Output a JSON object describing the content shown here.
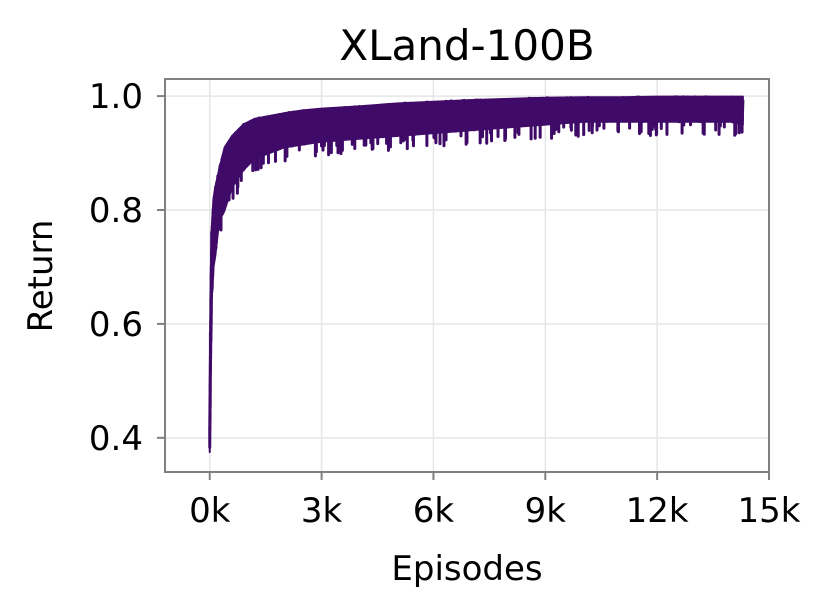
{
  "chart_data": {
    "type": "line",
    "title": "XLand-100B",
    "xlabel": "Episodes",
    "ylabel": "Return",
    "xlim": [
      -1200,
      15000
    ],
    "ylim": [
      0.34,
      1.03
    ],
    "xticks": [
      0,
      3000,
      6000,
      9000,
      12000,
      15000
    ],
    "xtick_labels": [
      "0k",
      "3k",
      "6k",
      "9k",
      "12k",
      "15k"
    ],
    "yticks": [
      0.4,
      0.6,
      0.8,
      1.0
    ],
    "ytick_labels": [
      "0.4",
      "0.6",
      "0.8",
      "1.0"
    ],
    "grid": true,
    "series": [
      {
        "color": "#3f0a68",
        "band_upper": [
          [
            0,
            0.42
          ],
          [
            20,
            0.6
          ],
          [
            50,
            0.76
          ],
          [
            100,
            0.82
          ],
          [
            150,
            0.84
          ],
          [
            250,
            0.87
          ],
          [
            400,
            0.91
          ],
          [
            600,
            0.93
          ],
          [
            900,
            0.95
          ],
          [
            1200,
            0.96
          ],
          [
            1600,
            0.965
          ],
          [
            2000,
            0.97
          ],
          [
            2500,
            0.975
          ],
          [
            3000,
            0.978
          ],
          [
            4000,
            0.982
          ],
          [
            5000,
            0.987
          ],
          [
            6000,
            0.99
          ],
          [
            7000,
            0.993
          ],
          [
            8000,
            0.995
          ],
          [
            9000,
            0.997
          ],
          [
            10000,
            0.998
          ],
          [
            11000,
            0.998
          ],
          [
            12000,
            0.999
          ],
          [
            13000,
            0.999
          ],
          [
            14000,
            0.999
          ],
          [
            14300,
            0.999
          ]
        ],
        "band_lower": [
          [
            0,
            0.375
          ],
          [
            20,
            0.5
          ],
          [
            50,
            0.64
          ],
          [
            100,
            0.7
          ],
          [
            150,
            0.72
          ],
          [
            250,
            0.78
          ],
          [
            400,
            0.8
          ],
          [
            600,
            0.84
          ],
          [
            900,
            0.87
          ],
          [
            1200,
            0.89
          ],
          [
            1600,
            0.9
          ],
          [
            2000,
            0.91
          ],
          [
            2500,
            0.915
          ],
          [
            3000,
            0.92
          ],
          [
            4000,
            0.925
          ],
          [
            5000,
            0.93
          ],
          [
            6000,
            0.935
          ],
          [
            7000,
            0.94
          ],
          [
            8000,
            0.945
          ],
          [
            9000,
            0.95
          ],
          [
            10000,
            0.955
          ],
          [
            11000,
            0.955
          ],
          [
            12000,
            0.955
          ],
          [
            13000,
            0.955
          ],
          [
            14000,
            0.955
          ],
          [
            14300,
            0.95
          ]
        ]
      }
    ]
  }
}
